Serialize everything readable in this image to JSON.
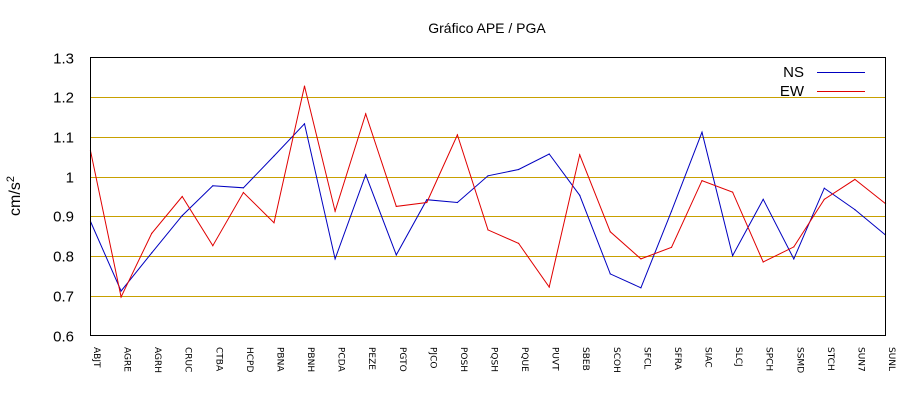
{
  "chart_data": {
    "type": "line",
    "title": "Gráfico  APE / PGA",
    "xlabel": "",
    "ylabel": "cm/s",
    "ylabel_superscript": "2",
    "ylim": [
      0.6,
      1.3
    ],
    "yticks": [
      "0.6",
      "0.7",
      "0.8",
      "0.9",
      "1",
      "1.1",
      "1.2",
      "1.3"
    ],
    "grid": true,
    "legend_position": "top-right",
    "categories": [
      "ABJT",
      "AGRE",
      "AGRH",
      "CRUC",
      "CTBA",
      "HCPD",
      "PBNA",
      "PBNH",
      "PCDA",
      "PEZE",
      "PGTO",
      "PJCO",
      "POSH",
      "PQSH",
      "PQUE",
      "PUVT",
      "SBEB",
      "SCOH",
      "SFCL",
      "SFRA",
      "SIAC",
      "SLCJ",
      "SPCH",
      "SSMD",
      "STCH",
      "SUN7",
      "SUNL"
    ],
    "series": [
      {
        "name": "NS",
        "color": "#0000c0",
        "values": [
          0.887,
          0.712,
          0.808,
          0.902,
          0.977,
          0.972,
          1.052,
          1.133,
          0.793,
          1.005,
          0.803,
          0.942,
          0.935,
          1.002,
          1.018,
          1.057,
          0.953,
          0.755,
          0.72,
          0.913,
          1.112,
          0.801,
          0.943,
          0.793,
          0.971,
          0.917,
          0.853
        ]
      },
      {
        "name": "EW",
        "color": "#e00000",
        "values": [
          1.065,
          0.697,
          0.857,
          0.95,
          0.826,
          0.96,
          0.884,
          1.228,
          0.913,
          1.158,
          0.925,
          0.935,
          1.105,
          0.866,
          0.832,
          0.722,
          1.055,
          0.861,
          0.793,
          0.822,
          0.99,
          0.961,
          0.785,
          0.823,
          0.943,
          0.993,
          0.932
        ]
      }
    ],
    "colors": {
      "grid": "#c8a000",
      "frame": "#000000"
    }
  }
}
